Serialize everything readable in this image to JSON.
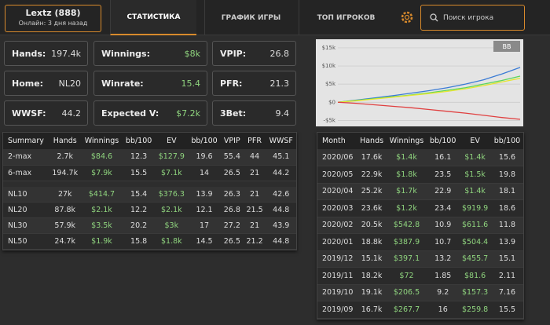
{
  "header": {
    "player": "Lextz (888)",
    "status": "Онлайн: 3 дня назад",
    "tabs": [
      "СТАТИСТИКА",
      "ГРАФИК ИГРЫ",
      "ТОП ИГРОКОВ"
    ],
    "search_placeholder": "Поиск игрока"
  },
  "stats": [
    {
      "label": "Hands:",
      "value": "197.4k"
    },
    {
      "label": "Winnings:",
      "value": "$8k"
    },
    {
      "label": "VPIP:",
      "value": "26.8"
    },
    {
      "label": "Home:",
      "value": "NL20"
    },
    {
      "label": "Winrate:",
      "value": "15.4"
    },
    {
      "label": "PFR:",
      "value": "21.3"
    },
    {
      "label": "WWSF:",
      "value": "44.2"
    },
    {
      "label": "Expected V:",
      "value": "$7.2k"
    },
    {
      "label": "3Bet:",
      "value": "9.4"
    }
  ],
  "chart_data": {
    "type": "line",
    "legend_button": "BB",
    "categories": [
      null,
      null,
      null,
      null,
      null,
      null,
      null,
      null,
      null,
      null,
      null
    ],
    "series": [
      {
        "color": "#3a7bd5",
        "values": [
          0,
          600,
          1200,
          1800,
          2500,
          3200,
          4000,
          5000,
          6200,
          7800,
          9600
        ]
      },
      {
        "color": "#5cd65c",
        "values": [
          0,
          500,
          1000,
          1500,
          2000,
          2600,
          3300,
          4000,
          5000,
          6000,
          7200
        ]
      },
      {
        "color": "#e6e62e",
        "values": [
          0,
          400,
          900,
          1400,
          1900,
          2400,
          3000,
          3700,
          4600,
          5600,
          6600
        ]
      },
      {
        "color": "#e04040",
        "values": [
          0,
          -300,
          -700,
          -1100,
          -1500,
          -2000,
          -2500,
          -3000,
          -3600,
          -4200,
          -4700
        ]
      }
    ],
    "ylim": [
      -6000,
      16500
    ],
    "yticks": [
      {
        "value": 15000,
        "label": "$15k"
      },
      {
        "value": 10000,
        "label": "$10k"
      },
      {
        "value": 5000,
        "label": "$5k"
      },
      {
        "value": 0,
        "label": "$0"
      },
      {
        "value": -5000,
        "label": "-$5k"
      }
    ],
    "grid": true
  },
  "summary_table": {
    "columns": [
      "Summary",
      "Hands",
      "Winnings",
      "bb/100",
      "EV",
      "bb/100",
      "VPIP",
      "PFR",
      "WWSF"
    ],
    "groups": [
      [
        [
          "2-max",
          "2.7k",
          "$84.6",
          "12.3",
          "$127.9",
          "19.6",
          "55.4",
          "44",
          "45.1"
        ],
        [
          "6-max",
          "194.7k",
          "$7.9k",
          "15.5",
          "$7.1k",
          "14",
          "26.5",
          "21",
          "44.2"
        ]
      ],
      [
        [
          "NL10",
          "27k",
          "$414.7",
          "15.4",
          "$376.3",
          "13.9",
          "26.3",
          "21",
          "42.6"
        ],
        [
          "NL20",
          "87.8k",
          "$2.1k",
          "12.2",
          "$2.1k",
          "12.1",
          "26.8",
          "21.5",
          "44.8"
        ],
        [
          "NL30",
          "57.9k",
          "$3.5k",
          "20.2",
          "$3k",
          "17",
          "27.2",
          "21",
          "43.9"
        ],
        [
          "NL50",
          "24.7k",
          "$1.9k",
          "15.8",
          "$1.8k",
          "14.5",
          "26.5",
          "21.2",
          "44.8"
        ]
      ]
    ]
  },
  "month_table": {
    "columns": [
      "Month",
      "Hands",
      "Winnings",
      "bb/100",
      "EV",
      "bb/100"
    ],
    "rows": [
      [
        "2020/06",
        "17.6k",
        "$1.4k",
        "16.1",
        "$1.4k",
        "15.6"
      ],
      [
        "2020/05",
        "22.9k",
        "$1.8k",
        "23.5",
        "$1.5k",
        "19.8"
      ],
      [
        "2020/04",
        "25.2k",
        "$1.7k",
        "22.9",
        "$1.4k",
        "18.1"
      ],
      [
        "2020/03",
        "23.6k",
        "$1.2k",
        "23.4",
        "$919.9",
        "18.6"
      ],
      [
        "2020/02",
        "20.5k",
        "$542.8",
        "10.9",
        "$611.6",
        "11.8"
      ],
      [
        "2020/01",
        "18.8k",
        "$387.9",
        "10.7",
        "$504.4",
        "13.9"
      ],
      [
        "2019/12",
        "15.1k",
        "$397.1",
        "13.2",
        "$455.7",
        "15.1"
      ],
      [
        "2019/11",
        "18.2k",
        "$72",
        "1.85",
        "$81.6",
        "2.11"
      ],
      [
        "2019/10",
        "19.1k",
        "$206.5",
        "9.2",
        "$157.3",
        "7.16"
      ],
      [
        "2019/09",
        "16.7k",
        "$267.7",
        "16",
        "$259.8",
        "15.5"
      ]
    ]
  }
}
